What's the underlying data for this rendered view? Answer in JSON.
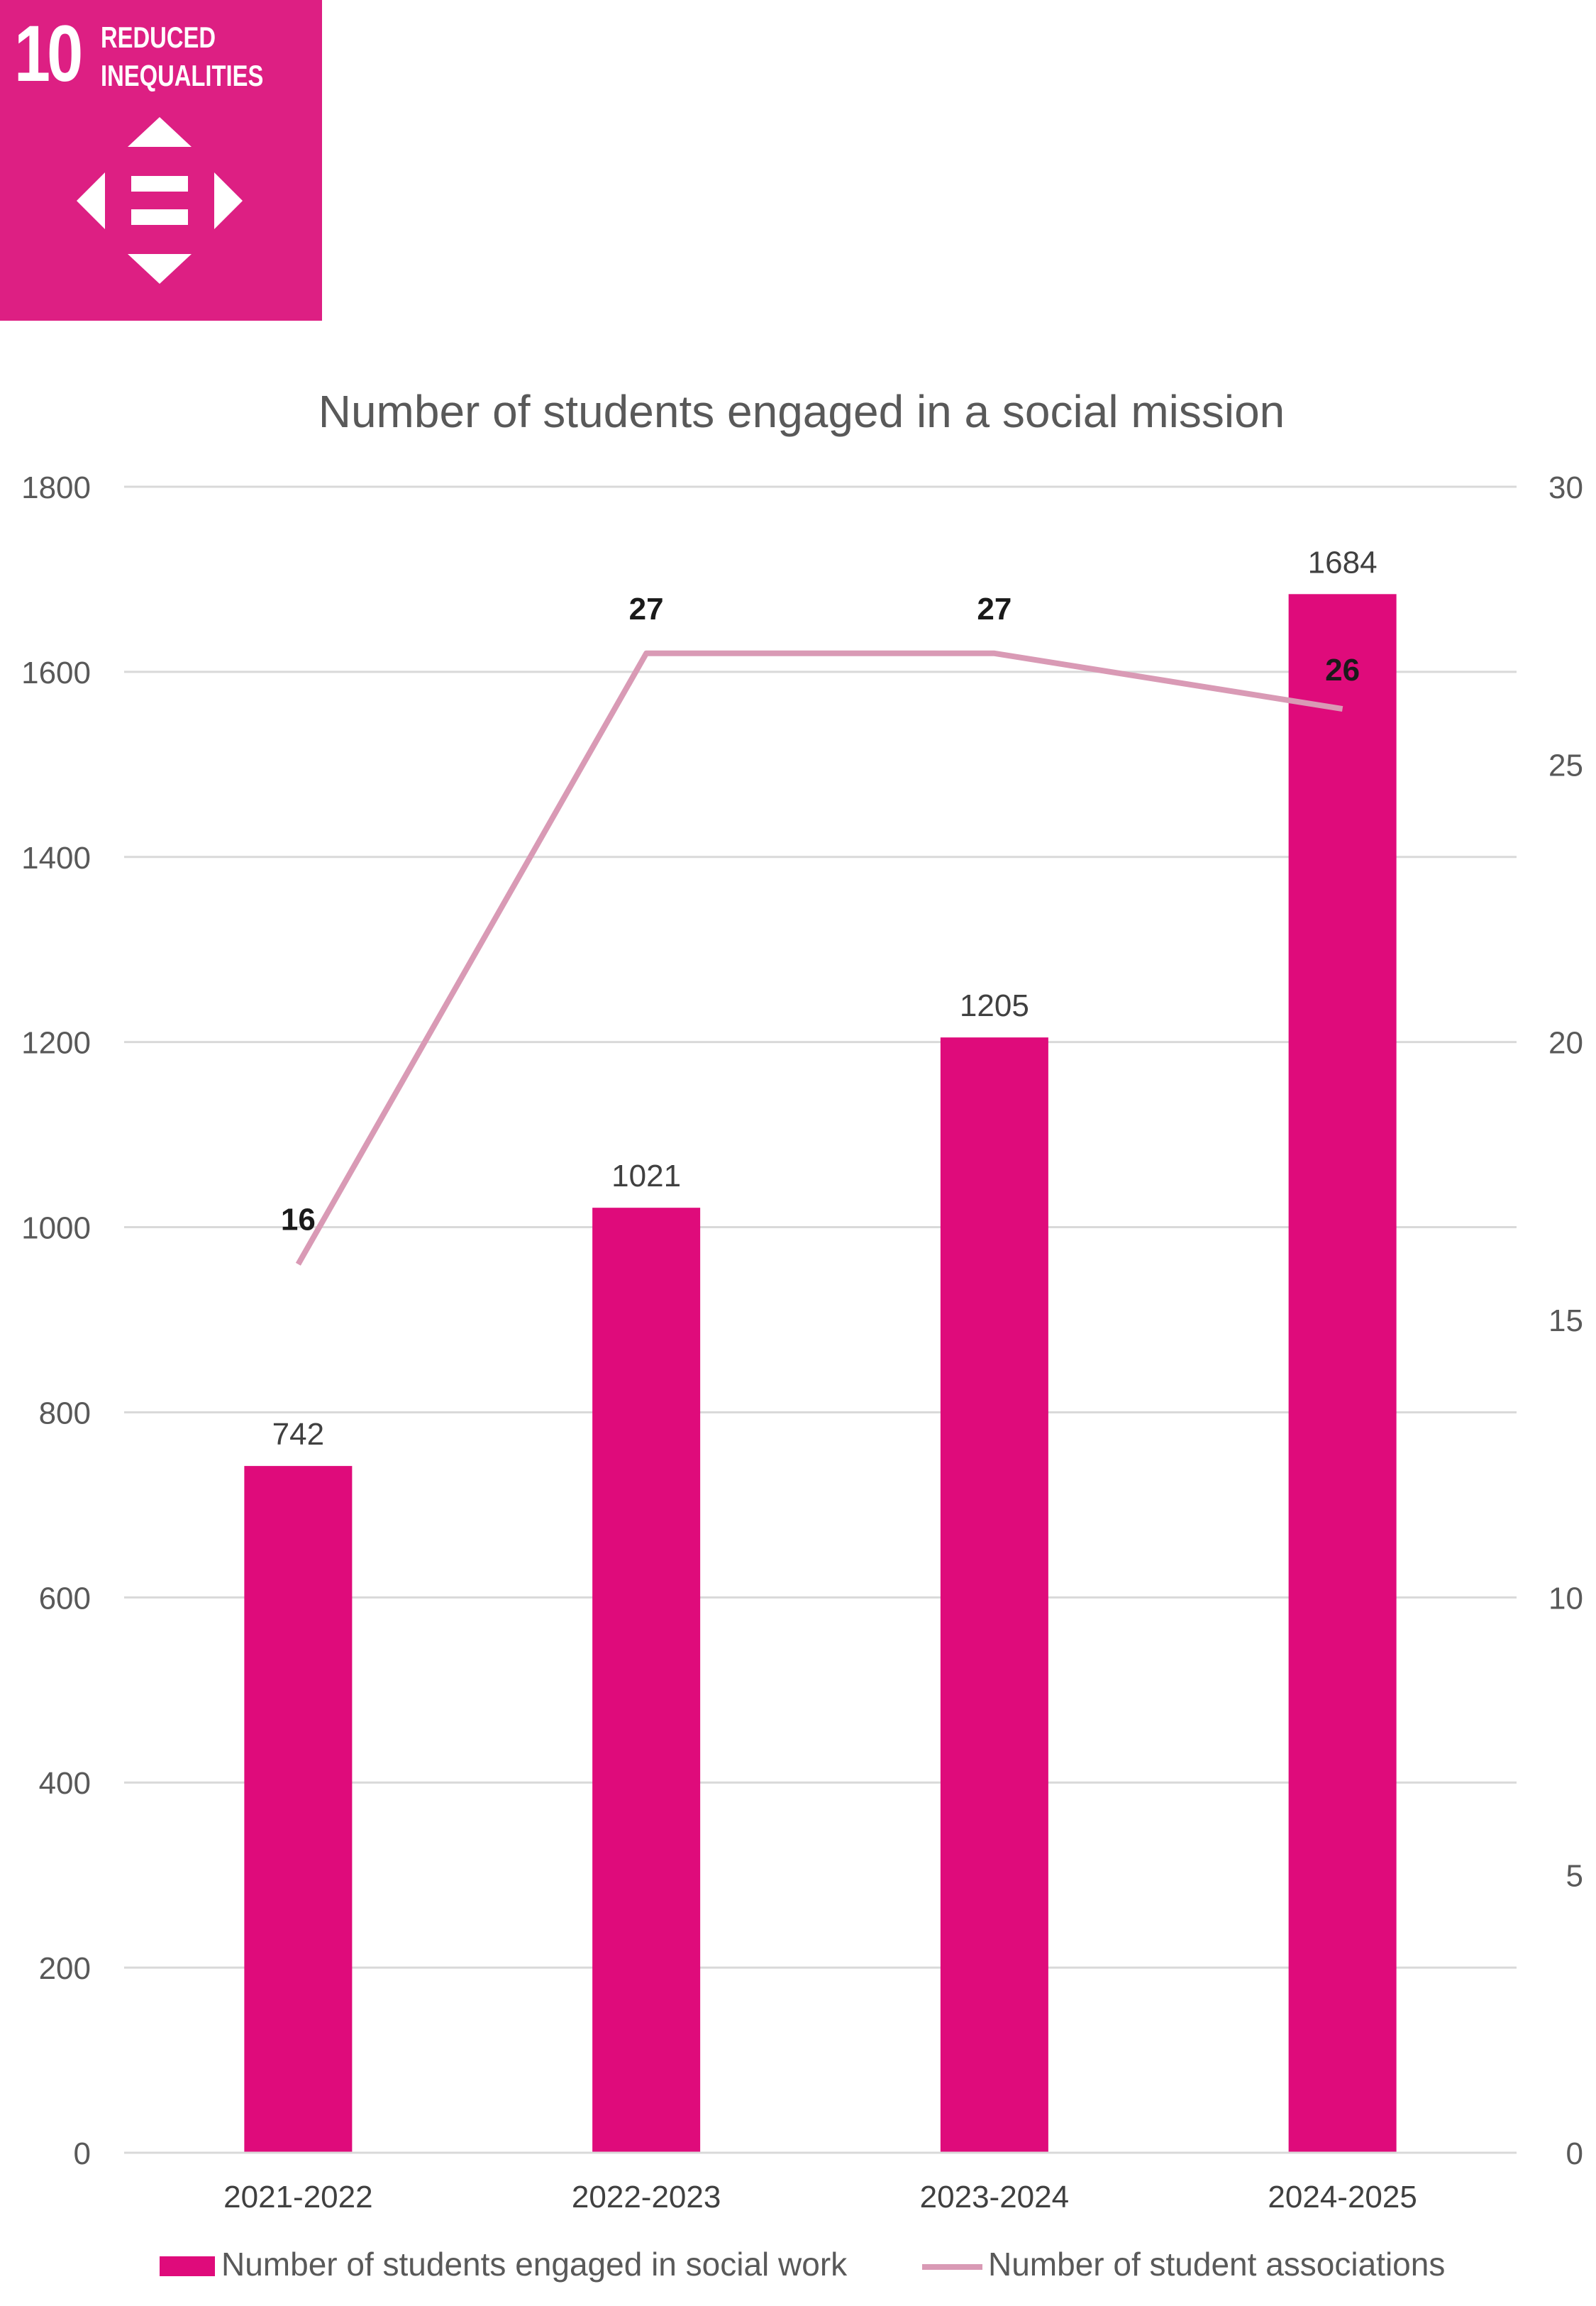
{
  "badge": {
    "number": "10",
    "title_line1": "REDUCED",
    "title_line2": "INEQUALITIES",
    "icon": "reduced-inequalities-icon",
    "color": "#dd1f83"
  },
  "chart_data": {
    "type": "bar+line",
    "title": "Number of students engaged in a social mission",
    "categories": [
      "2021-2022",
      "2022-2023",
      "2023-2024",
      "2024-2025"
    ],
    "series": [
      {
        "name": "Number of students engaged in social work",
        "type": "bar",
        "axis": "left",
        "color": "#df0b7b",
        "values": [
          742,
          1021,
          1205,
          1684
        ]
      },
      {
        "name": "Number of student associations",
        "type": "line",
        "axis": "right",
        "color": "#d99ab5",
        "values": [
          16,
          27,
          27,
          26
        ]
      }
    ],
    "y_left": {
      "min": 0,
      "max": 1800,
      "ticks": [
        0,
        200,
        400,
        600,
        800,
        1000,
        1200,
        1400,
        1600,
        1800
      ]
    },
    "y_right": {
      "min": 0,
      "max": 30,
      "ticks": [
        0,
        5,
        10,
        15,
        20,
        25,
        30
      ]
    },
    "grid": true,
    "legend": "bottom"
  }
}
